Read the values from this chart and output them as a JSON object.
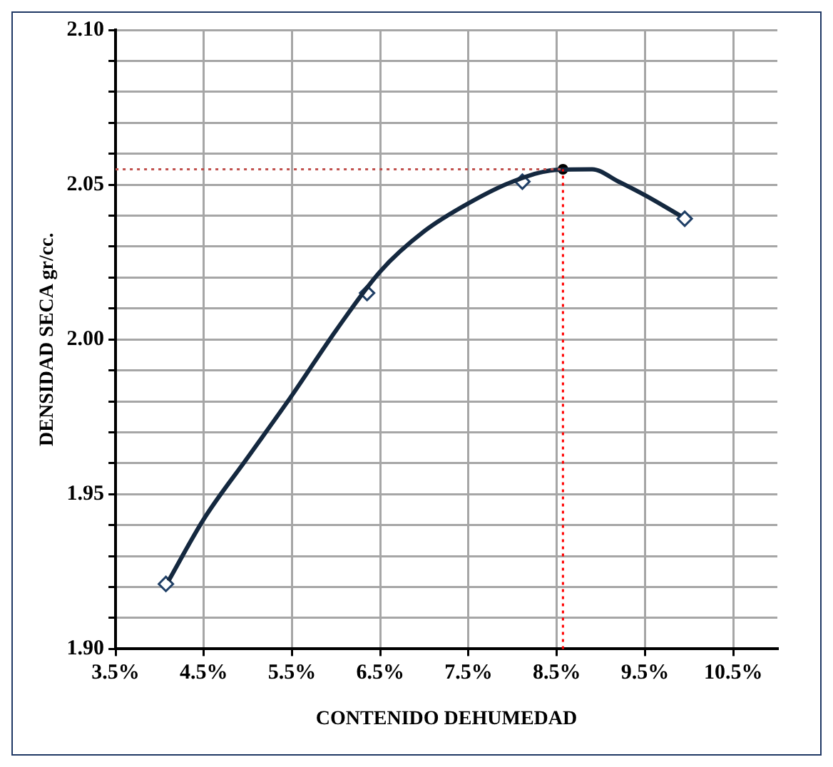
{
  "chart_data": {
    "type": "line",
    "xlabel": "CONTENIDO DEHUMEDAD",
    "ylabel": "DENSIDAD SECA gr/cc.",
    "xlim": [
      3.5,
      11.0
    ],
    "xticks": [
      {
        "value": 3.5,
        "label": "3.5%"
      },
      {
        "value": 4.5,
        "label": "4.5%"
      },
      {
        "value": 5.5,
        "label": "5.5%"
      },
      {
        "value": 6.5,
        "label": "6.5%"
      },
      {
        "value": 7.5,
        "label": "7.5%"
      },
      {
        "value": 8.5,
        "label": "8.5%"
      },
      {
        "value": 9.5,
        "label": "9.5%"
      },
      {
        "value": 10.5,
        "label": "10.5%"
      }
    ],
    "ylim": [
      1.9,
      2.1
    ],
    "yticks": [
      {
        "value": 1.9,
        "label": "1.90"
      },
      {
        "value": 1.91,
        "label": null
      },
      {
        "value": 1.92,
        "label": null
      },
      {
        "value": 1.93,
        "label": null
      },
      {
        "value": 1.94,
        "label": null
      },
      {
        "value": 1.95,
        "label": "1.95"
      },
      {
        "value": 1.96,
        "label": null
      },
      {
        "value": 1.97,
        "label": null
      },
      {
        "value": 1.98,
        "label": null
      },
      {
        "value": 1.99,
        "label": null
      },
      {
        "value": 2.0,
        "label": "2.00"
      },
      {
        "value": 2.01,
        "label": null
      },
      {
        "value": 2.02,
        "label": null
      },
      {
        "value": 2.03,
        "label": null
      },
      {
        "value": 2.04,
        "label": null
      },
      {
        "value": 2.05,
        "label": "2.05"
      },
      {
        "value": 2.06,
        "label": null
      },
      {
        "value": 2.07,
        "label": null
      },
      {
        "value": 2.08,
        "label": null
      },
      {
        "value": 2.09,
        "label": null
      },
      {
        "value": 2.1,
        "label": "2.10"
      }
    ],
    "grid": true,
    "series": [
      {
        "type": "line",
        "color": "#14283f",
        "marker": "none",
        "line_style": "solid",
        "x": [
          4.1,
          4.5,
          5.0,
          5.5,
          6.0,
          6.5,
          7.0,
          7.5,
          8.0,
          8.5,
          8.9,
          9.2,
          9.5,
          9.9
        ],
        "values": [
          1.922,
          1.942,
          1.962,
          1.982,
          2.003,
          2.022,
          2.035,
          2.044,
          2.051,
          2.0548,
          2.055,
          2.051,
          2.0466,
          2.04
        ]
      },
      {
        "type": "scatter",
        "color": "#1f3f66",
        "marker": "diamond",
        "x": [
          4.07,
          6.35,
          8.11,
          9.95
        ],
        "values": [
          1.921,
          2.015,
          2.051,
          2.039
        ]
      },
      {
        "type": "scatter",
        "color": "#000000",
        "marker": "circle",
        "x": [
          8.57
        ],
        "values": [
          2.055
        ]
      }
    ],
    "ref_lines": [
      {
        "axis": "x",
        "value": 8.57,
        "color": "#ff0000",
        "line_style": "dotted"
      },
      {
        "axis": "y",
        "value": 2.055,
        "color": "#c0504d",
        "line_style": "dotted"
      }
    ]
  }
}
